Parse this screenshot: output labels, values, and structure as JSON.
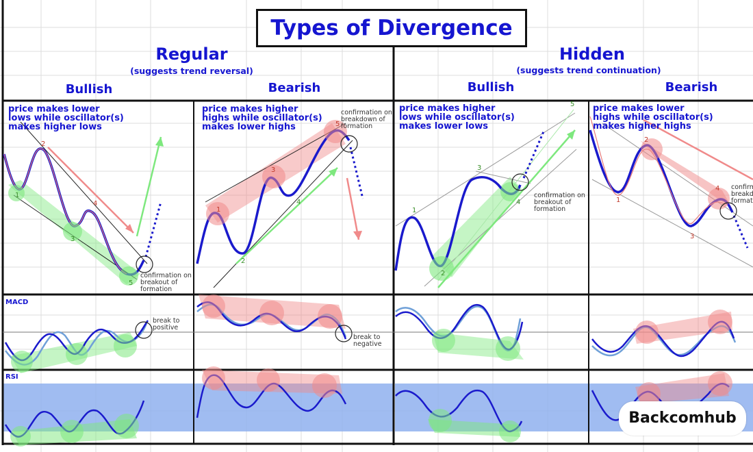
{
  "title": "Types of Divergence",
  "regular": {
    "heading": "Regular",
    "subtitle": "(suggests trend reversal)"
  },
  "hidden": {
    "heading": "Hidden",
    "subtitle": "(suggests trend continuation)"
  },
  "columns": {
    "regular_bullish": {
      "heading": "Bullish",
      "description": "price makes lower\nlows while oscillator(s)\nmakes higher lows",
      "note": "confirmation on\nbreakout of\nformation"
    },
    "regular_bearish": {
      "heading": "Bearish",
      "description": "price makes higher\nhighs while oscillator(s)\nmakes lower highs",
      "note": "confirmation on\nbreakdown of\nformation"
    },
    "hidden_bullish": {
      "heading": "Bullish",
      "description": "price makes higher\nlows while oscillator(s)\nmakes lower lows",
      "note": "confirmation on\nbreakout of\nformation"
    },
    "hidden_bearish": {
      "heading": "Bearish",
      "description": "price makes lower\nhighs while oscillator(s)\nmakes higher highs",
      "note": "confirm\nbreakd\nformati"
    }
  },
  "points": {
    "p1": "1",
    "p2": "2",
    "p3": "3",
    "p4": "4",
    "p5": "5"
  },
  "indicators": {
    "macd": "MACD",
    "rsi": "RSI"
  },
  "macd_notes": {
    "positive": "break to\npositive",
    "negative": "break to\nnegative"
  },
  "logo": "Backcomhub",
  "colors": {
    "price_line": "#1a1acc",
    "text": "#1515d0",
    "bullish_zone": "#7ee87e",
    "bearish_zone": "#f08a8a",
    "rsi_band": "#8fb0ee",
    "osc_line2": "#6fa0d8"
  }
}
